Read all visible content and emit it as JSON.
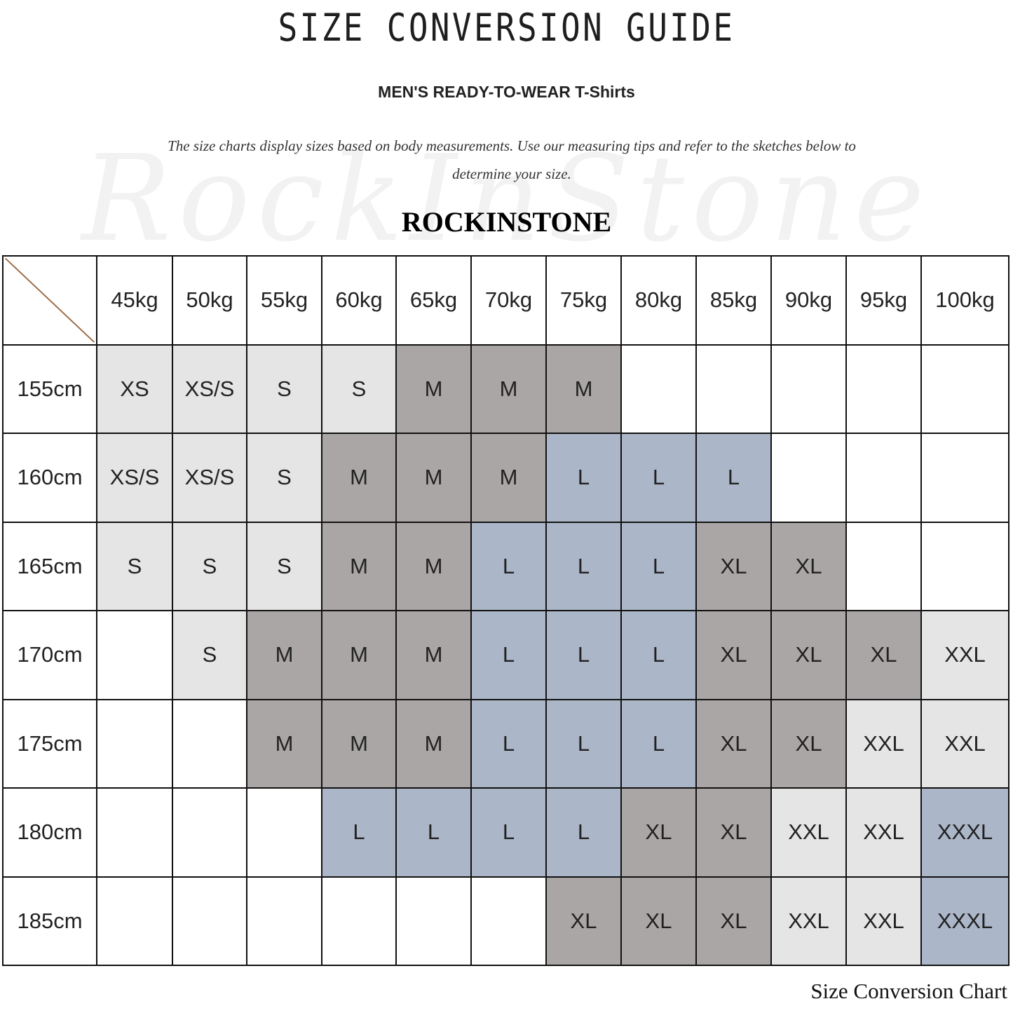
{
  "header": {
    "title": "SIZE CONVERSION GUIDE",
    "subtitle": "MEN'S READY-TO-WEAR T-Shirts",
    "description": "The size charts display sizes based on body measurements. Use our measuring tips and refer to the sketches below to determine your size.",
    "brand": "ROCKINSTONE",
    "watermark": "RockInStone"
  },
  "table": {
    "columns": [
      "45kg",
      "50kg",
      "55kg",
      "60kg",
      "65kg",
      "70kg",
      "75kg",
      "80kg",
      "85kg",
      "90kg",
      "95kg",
      "100kg"
    ],
    "rows": [
      {
        "height": "155cm",
        "cells": [
          "XS",
          "XS/S",
          "S",
          "S",
          "M",
          "M",
          "M",
          "",
          "",
          "",
          "",
          ""
        ]
      },
      {
        "height": "160cm",
        "cells": [
          "XS/S",
          "XS/S",
          "S",
          "M",
          "M",
          "M",
          "L",
          "L",
          "L",
          "",
          "",
          ""
        ]
      },
      {
        "height": "165cm",
        "cells": [
          "S",
          "S",
          "S",
          "M",
          "M",
          "L",
          "L",
          "L",
          "XL",
          "XL",
          "",
          ""
        ]
      },
      {
        "height": "170cm",
        "cells": [
          "",
          "S",
          "M",
          "M",
          "M",
          "L",
          "L",
          "L",
          "XL",
          "XL",
          "XL",
          "XXL"
        ]
      },
      {
        "height": "175cm",
        "cells": [
          "",
          "",
          "M",
          "M",
          "M",
          "L",
          "L",
          "L",
          "XL",
          "XL",
          "XXL",
          "XXL"
        ]
      },
      {
        "height": "180cm",
        "cells": [
          "",
          "",
          "",
          "L",
          "L",
          "L",
          "L",
          "XL",
          "XL",
          "XXL",
          "XXL",
          "XXXL"
        ]
      },
      {
        "height": "185cm",
        "cells": [
          "",
          "",
          "",
          "",
          "",
          "",
          "XL",
          "XL",
          "XL",
          "XXL",
          "XXL",
          "XXXL"
        ]
      }
    ],
    "colors": {
      "XS": "#e5e5e5",
      "XS/S": "#e5e5e5",
      "S": "#e5e5e5",
      "M": "#aaa6a5",
      "L": "#abb6c8",
      "XL": "#aaa6a5",
      "XXL": "#e5e5e5",
      "XXXL": "#abb6c8"
    }
  },
  "footer": {
    "caption": "Size Conversion Chart"
  }
}
